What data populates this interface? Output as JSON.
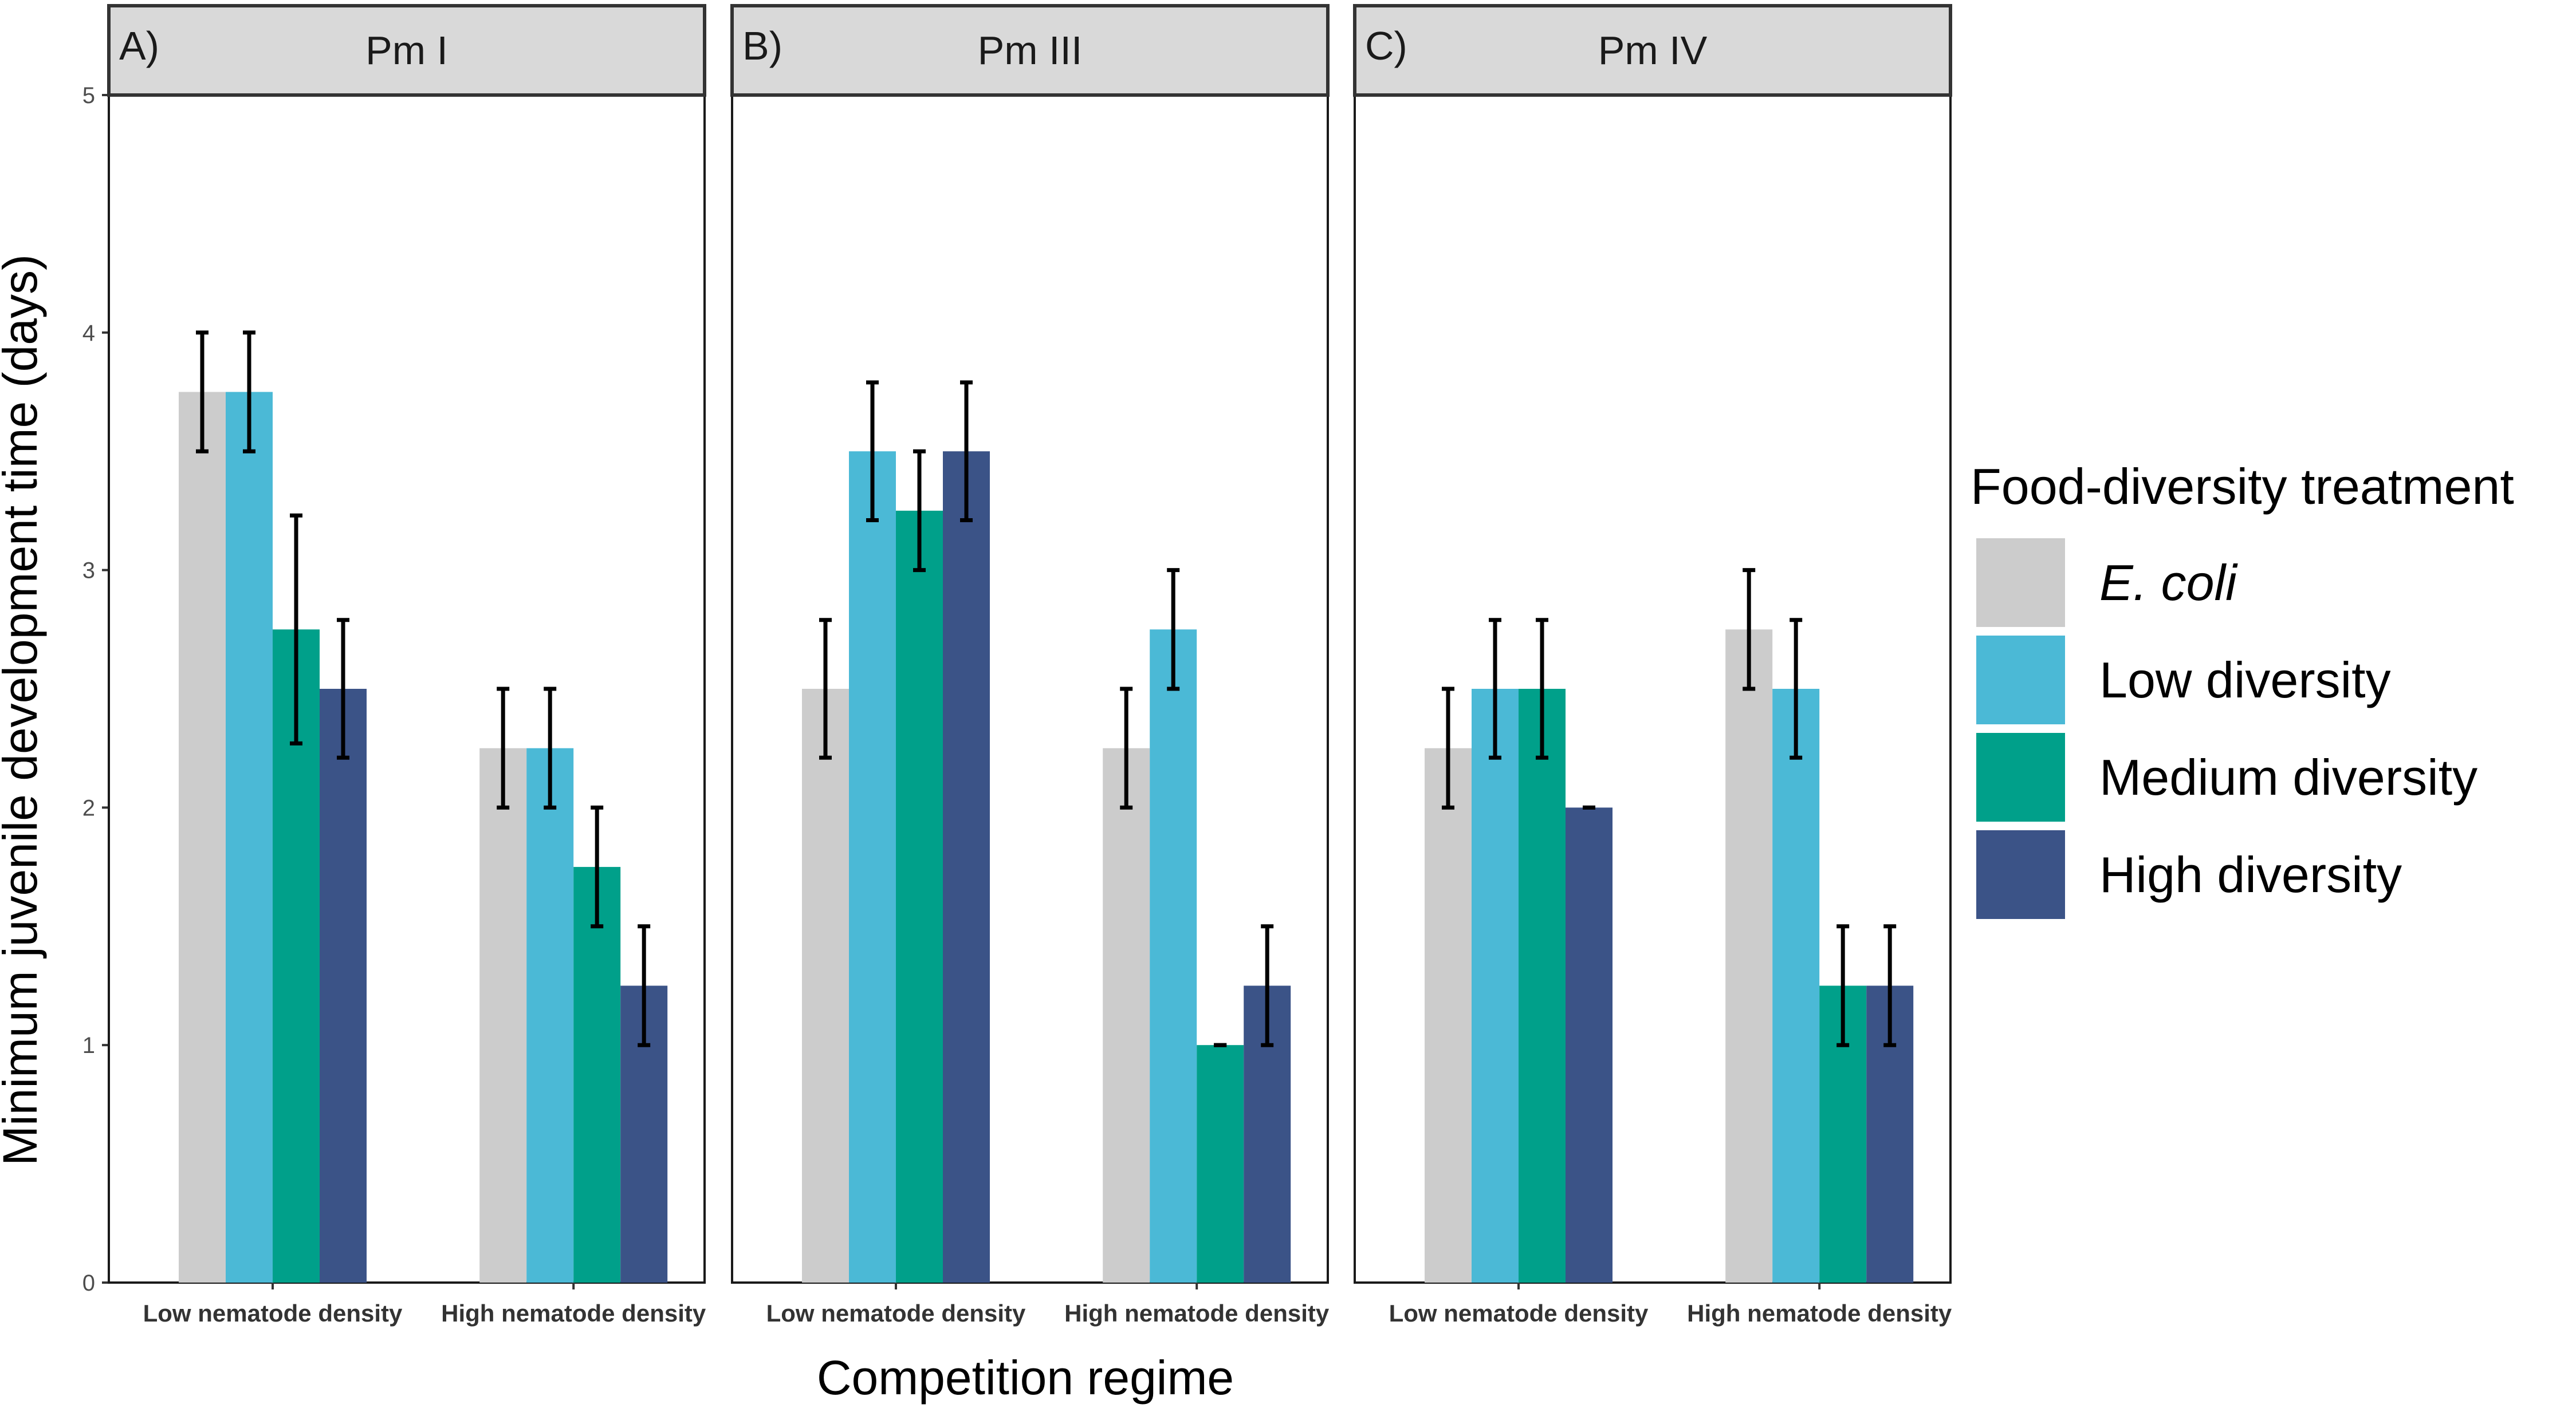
{
  "chart_data": {
    "type": "bar",
    "ylabel": "Minimum juvenile development time (days)",
    "xlabel": "Competition regime",
    "ylim": [
      0,
      5
    ],
    "yticks": [
      0,
      1,
      2,
      3,
      4,
      5
    ],
    "categories": [
      "Low nematode density",
      "High nematode density"
    ],
    "legend": {
      "title": "Food-diversity treatment",
      "placement": "right",
      "entries": [
        {
          "name": "E. coli",
          "italic": true,
          "color": "#CCCCCC"
        },
        {
          "name": "Low diversity",
          "italic": false,
          "color": "#4BB9D6"
        },
        {
          "name": "Medium diversity",
          "italic": false,
          "color": "#00A08A"
        },
        {
          "name": "High diversity",
          "italic": false,
          "color": "#3B5387"
        }
      ]
    },
    "panels": [
      {
        "tag": "A)",
        "title": "Pm I",
        "series": [
          {
            "name": "E. coli",
            "values": [
              3.75,
              2.25
            ],
            "errors": [
              0.25,
              0.25
            ]
          },
          {
            "name": "Low diversity",
            "values": [
              3.75,
              2.25
            ],
            "errors": [
              0.25,
              0.25
            ]
          },
          {
            "name": "Medium diversity",
            "values": [
              2.75,
              1.75
            ],
            "errors": [
              0.48,
              0.25
            ]
          },
          {
            "name": "High diversity",
            "values": [
              2.5,
              1.25
            ],
            "errors": [
              0.29,
              0.25
            ]
          }
        ]
      },
      {
        "tag": "B)",
        "title": "Pm III",
        "series": [
          {
            "name": "E. coli",
            "values": [
              2.5,
              2.25
            ],
            "errors": [
              0.29,
              0.25
            ]
          },
          {
            "name": "Low diversity",
            "values": [
              3.5,
              2.75
            ],
            "errors": [
              0.29,
              0.25
            ]
          },
          {
            "name": "Medium diversity",
            "values": [
              3.25,
              1.0
            ],
            "errors": [
              0.25,
              0.0
            ]
          },
          {
            "name": "High diversity",
            "values": [
              3.5,
              1.25
            ],
            "errors": [
              0.29,
              0.25
            ]
          }
        ]
      },
      {
        "tag": "C)",
        "title": "Pm IV",
        "series": [
          {
            "name": "E. coli",
            "values": [
              2.25,
              2.75
            ],
            "errors": [
              0.25,
              0.25
            ]
          },
          {
            "name": "Low diversity",
            "values": [
              2.5,
              2.5
            ],
            "errors": [
              0.29,
              0.29
            ]
          },
          {
            "name": "Medium diversity",
            "values": [
              2.5,
              1.25
            ],
            "errors": [
              0.29,
              0.25
            ]
          },
          {
            "name": "High diversity",
            "values": [
              2.0,
              1.25
            ],
            "errors": [
              0.0,
              0.25
            ]
          }
        ]
      }
    ]
  }
}
